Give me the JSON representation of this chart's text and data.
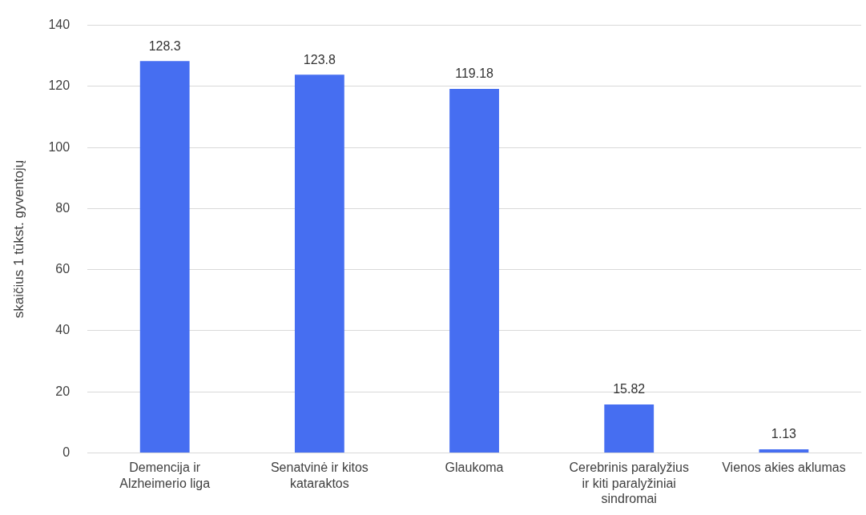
{
  "chart_data": {
    "type": "bar",
    "ylabel": "skaičius 1 tūkst. gyventojų",
    "categories": [
      "Demencija ir Alzheimerio liga",
      "Senatvinė ir kitos kataraktos",
      "Glaukoma",
      "Cerebrinis paralyžius ir kiti paralyžiniai sindromai",
      "Vienos akies aklumas"
    ],
    "values": [
      128.3,
      123.8,
      119.18,
      15.82,
      1.13
    ],
    "color": "#466ef1",
    "ylim": [
      0,
      140
    ],
    "yticks": [
      0,
      20,
      40,
      60,
      80,
      100,
      120,
      140
    ],
    "grid": "y",
    "data_labels": true,
    "legend": false
  }
}
